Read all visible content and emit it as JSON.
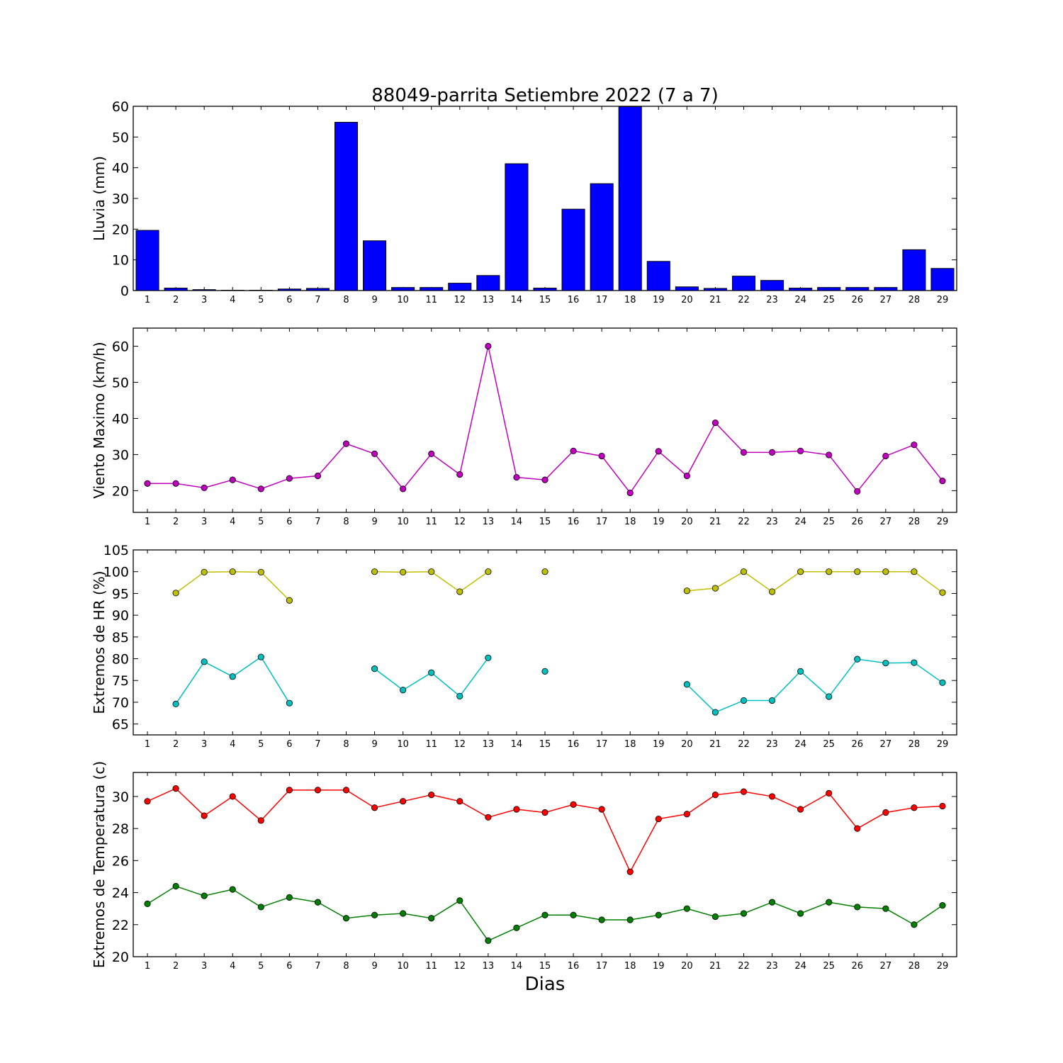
{
  "title": "88049-parrita Setiembre 2022  (7 a 7)",
  "xlabel": "Dias",
  "chart_data": [
    {
      "type": "bar",
      "ylabel": "Lluvia (mm)",
      "ylim": [
        0,
        60
      ],
      "yticks": [
        0,
        10,
        20,
        30,
        40,
        50,
        60
      ],
      "categories": [
        1,
        2,
        3,
        4,
        5,
        6,
        7,
        8,
        9,
        10,
        11,
        12,
        13,
        14,
        15,
        16,
        17,
        18,
        19,
        20,
        21,
        22,
        23,
        24,
        25,
        26,
        27,
        28,
        29
      ],
      "color": "#0000ff",
      "values": [
        19.6,
        0.8,
        0.3,
        0.1,
        0.1,
        0.5,
        0.7,
        54.8,
        16.2,
        1.0,
        1.0,
        2.4,
        4.9,
        41.3,
        0.8,
        26.5,
        34.8,
        59.9,
        9.5,
        1.2,
        0.7,
        4.7,
        3.3,
        0.8,
        1.0,
        1.0,
        1.0,
        13.3,
        7.2
      ]
    },
    {
      "type": "line",
      "ylabel": "Viento Maximo (km/h)",
      "ylim": [
        14,
        65
      ],
      "yticks": [
        20,
        30,
        40,
        50,
        60
      ],
      "x": [
        1,
        2,
        3,
        4,
        5,
        6,
        7,
        8,
        9,
        10,
        11,
        12,
        13,
        14,
        15,
        16,
        17,
        18,
        19,
        20,
        21,
        22,
        23,
        24,
        25,
        26,
        27,
        28,
        29
      ],
      "series": [
        {
          "color": "#bf00bf",
          "values": [
            22.0,
            22.0,
            20.8,
            23.0,
            20.5,
            23.4,
            24.1,
            33.0,
            30.2,
            20.5,
            30.2,
            24.5,
            60.0,
            23.7,
            23.0,
            31.0,
            29.6,
            19.4,
            30.9,
            24.1,
            38.8,
            30.6,
            30.6,
            31.0,
            29.9,
            19.8,
            29.6,
            32.7,
            22.7
          ]
        }
      ]
    },
    {
      "type": "line",
      "ylabel": "Extremos de HR (%)",
      "ylim": [
        62.5,
        105
      ],
      "yticks": [
        65,
        70,
        75,
        80,
        85,
        90,
        95,
        100,
        105
      ],
      "x": [
        1,
        2,
        3,
        4,
        5,
        6,
        7,
        8,
        9,
        10,
        11,
        12,
        13,
        14,
        15,
        16,
        17,
        18,
        19,
        20,
        21,
        22,
        23,
        24,
        25,
        26,
        27,
        28,
        29
      ],
      "series": [
        {
          "color": "#bfbf00",
          "values": [
            null,
            95.1,
            99.9,
            100.0,
            99.9,
            93.4,
            null,
            null,
            100.0,
            99.9,
            100.0,
            95.4,
            100.0,
            null,
            100.0,
            null,
            null,
            null,
            null,
            95.6,
            96.2,
            100.0,
            95.4,
            100.0,
            100.0,
            100.0,
            100.0,
            100.0,
            95.2
          ]
        },
        {
          "color": "#00bfbf",
          "values": [
            null,
            69.6,
            79.3,
            75.9,
            80.4,
            69.8,
            null,
            null,
            77.7,
            72.8,
            76.8,
            71.4,
            80.2,
            null,
            77.1,
            null,
            null,
            null,
            null,
            74.1,
            67.7,
            70.4,
            70.4,
            77.1,
            71.3,
            79.9,
            79.0,
            79.1,
            74.5
          ]
        }
      ]
    },
    {
      "type": "line",
      "ylabel": "Extremos de Temperatura (c)",
      "ylim": [
        20,
        31.5
      ],
      "yticks": [
        20,
        22,
        24,
        26,
        28,
        30
      ],
      "x": [
        1,
        2,
        3,
        4,
        5,
        6,
        7,
        8,
        9,
        10,
        11,
        12,
        13,
        14,
        15,
        16,
        17,
        18,
        19,
        20,
        21,
        22,
        23,
        24,
        25,
        26,
        27,
        28,
        29
      ],
      "series": [
        {
          "color": "#ff0000",
          "values": [
            29.7,
            30.5,
            28.8,
            30.0,
            28.5,
            30.4,
            30.4,
            30.4,
            29.3,
            29.7,
            30.1,
            29.7,
            28.7,
            29.2,
            29.0,
            29.5,
            29.2,
            25.3,
            28.6,
            28.9,
            30.1,
            30.3,
            30.0,
            29.2,
            30.2,
            28.0,
            29.0,
            29.3,
            29.4
          ]
        },
        {
          "color": "#007f00",
          "values": [
            23.3,
            24.4,
            23.8,
            24.2,
            23.1,
            23.7,
            23.4,
            22.4,
            22.6,
            22.7,
            22.4,
            23.5,
            21.0,
            21.8,
            22.6,
            22.6,
            22.3,
            22.3,
            22.6,
            23.0,
            22.5,
            22.7,
            23.4,
            22.7,
            23.4,
            23.1,
            23.0,
            22.0,
            23.2
          ]
        }
      ]
    }
  ]
}
